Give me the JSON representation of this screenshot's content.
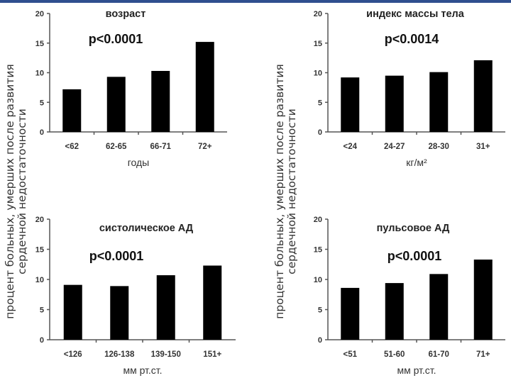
{
  "y_axis_label": "процент больных, умерших после развития сердечной недостаточности",
  "colors": {
    "bar": "#000000",
    "axis": "#555555",
    "text": "#333333",
    "top_border": "#2f4f8f"
  },
  "chart_data": [
    {
      "type": "bar",
      "title": "возраст",
      "annotation": "p<0.0001",
      "categories": [
        "<62",
        "62-65",
        "66-71",
        "72+"
      ],
      "values": [
        7.2,
        9.3,
        10.3,
        15.2
      ],
      "xlabel": "годы",
      "ylim": [
        0,
        20
      ],
      "yticks": [
        "0",
        "5",
        "10",
        "15",
        "20"
      ]
    },
    {
      "type": "bar",
      "title": "индекс массы тела",
      "annotation": "p<0.0014",
      "categories": [
        "<24",
        "24-27",
        "28-30",
        "31+"
      ],
      "values": [
        9.2,
        9.5,
        10.1,
        12.1
      ],
      "xlabel": "кг/м²",
      "ylim": [
        0,
        20
      ],
      "yticks": [
        "0",
        "5",
        "10",
        "15",
        "20"
      ]
    },
    {
      "type": "bar",
      "title": "систолическое АД",
      "annotation": "p<0.0001",
      "categories": [
        "<126",
        "126-138",
        "139-150",
        "151+"
      ],
      "values": [
        9.1,
        8.9,
        10.7,
        12.3
      ],
      "xlabel": "мм рт.ст.",
      "ylim": [
        0,
        20
      ],
      "yticks": [
        "0",
        "5",
        "10",
        "15",
        "20"
      ]
    },
    {
      "type": "bar",
      "title": "пульсовое АД",
      "annotation": "p<0.0001",
      "categories": [
        "<51",
        "51-60",
        "61-70",
        "71+"
      ],
      "values": [
        8.6,
        9.4,
        10.9,
        13.3
      ],
      "xlabel": "мм рт.ст.",
      "ylim": [
        0,
        20
      ],
      "yticks": [
        "0",
        "5",
        "10",
        "15",
        "20"
      ]
    }
  ]
}
